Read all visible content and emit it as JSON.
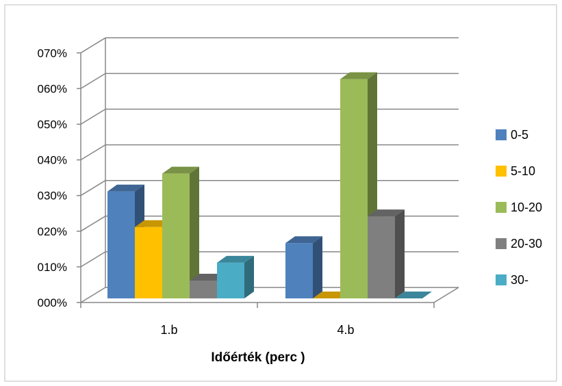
{
  "chart_data": {
    "type": "bar",
    "title": "",
    "xlabel": "Időérték (perc )",
    "ylabel": "",
    "categories": [
      "1.b",
      "4.b"
    ],
    "series": [
      {
        "name": "0-5",
        "values": [
          30,
          15.5
        ],
        "color": "#4f81bd"
      },
      {
        "name": "5-10",
        "values": [
          20,
          0
        ],
        "color": "#ffc000"
      },
      {
        "name": "10-20",
        "values": [
          35,
          61.5
        ],
        "color": "#9bbb59"
      },
      {
        "name": "20-30",
        "values": [
          5,
          23
        ],
        "color": "#7f7f7f"
      },
      {
        "name": "30-",
        "values": [
          10,
          0
        ],
        "color": "#4bacc6"
      }
    ],
    "yticks": [
      "000%",
      "010%",
      "020%",
      "030%",
      "040%",
      "050%",
      "060%",
      "070%"
    ],
    "ylim": [
      0,
      70
    ],
    "grid": true,
    "legend": "right",
    "style": "3d-clustered-column"
  }
}
